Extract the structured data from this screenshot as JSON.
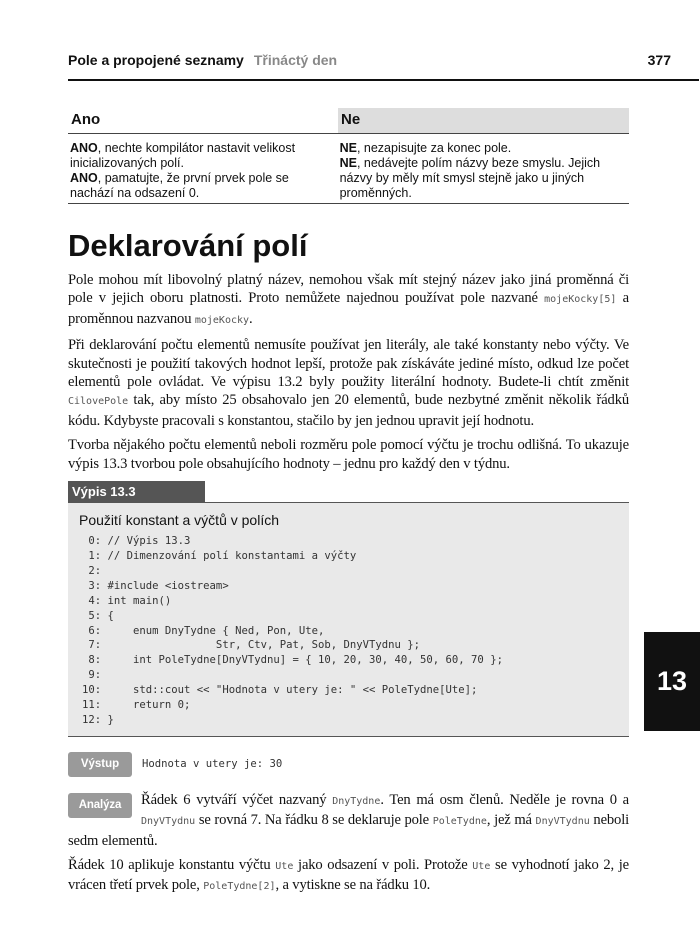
{
  "header": {
    "title": "Pole a propojené seznamy",
    "subtitle": "Třináctý den",
    "page": "377"
  },
  "table": {
    "col_yes": "Ano",
    "col_no": "Ne",
    "yes": [
      {
        "b": "ANO",
        "t": ", nechte kompilátor nastavit velikost inicializovaných polí."
      },
      {
        "b": "ANO",
        "t": ", pamatujte, že první prvek pole se nachází na odsazení 0."
      }
    ],
    "no": [
      {
        "b": "NE",
        "t": ", nezapisujte za konec pole."
      },
      {
        "b": "NE",
        "t": ", nedávejte polím názvy beze smyslu. Jejich názvy by měly mít smysl stejně jako u jiných proměnných."
      }
    ]
  },
  "heading": "Deklarování polí",
  "p1": [
    "Pole mohou mít libovolný platný název, nemohou však mít stejný název jako jiná proměnná či pole v jejich oboru platnosti. Proto nemůžete najednou používat pole nazvané ",
    "mojeKocky[5]",
    " a proměnnou nazvanou ",
    "mojeKocky",
    "."
  ],
  "p2": [
    "Při deklarování počtu elementů nemusíte používat jen literály, ale také konstanty nebo výčty. Ve skutečnosti je použití takových hodnot lepší, protože pak získáváte jediné místo, odkud lze počet elementů pole ovládat. Ve výpisu 13.2 byly použity literální hodnoty. Budete-li chtít změnit ",
    "CilovePole",
    " tak, aby místo 25 obsahovalo jen 20 elementů, bude nezbytné změnit několik řádků kódu. Kdybyste pracovali s konstantou, stačilo by jen jednou upravit její hodnotu."
  ],
  "p3": "Tvorba nějakého počtu elementů neboli rozměru pole pomocí výčtu je trochu odlišná. To ukazuje výpis 13.3 tvorbou pole obsahujícího hodnoty – jednu pro každý den v týdnu.",
  "listing": {
    "label": "Výpis 13.3",
    "title": "Použití konstant a výčtů v polích",
    "code": " 0: // Výpis 13.3\n 1: // Dimenzování polí konstantami a výčty\n 2:\n 3: #include <iostream>\n 4: int main()\n 5: {\n 6:     enum DnyTydne { Ned, Pon, Ute,\n 7:                  Str, Ctv, Pat, Sob, DnyVTydnu };\n 8:     int PoleTydne[DnyVTydnu] = { 10, 20, 30, 40, 50, 60, 70 };\n 9:\n10:     std::cout << \"Hodnota v utery je: \" << PoleTydne[Ute];\n11:     return 0;\n12: }"
  },
  "output": {
    "label": "Výstup",
    "text": "Hodnota v utery je: 30"
  },
  "analysis": {
    "label": "Analýza",
    "p1": [
      "Řádek 6 vytváří výčet nazvaný ",
      "DnyTydne",
      ". Ten má osm členů. Neděle je rovna 0 a ",
      "DnyVTydnu",
      " se rovná 7. Na řádku 8 se deklaruje pole ",
      "PoleTydne",
      ", jež má ",
      "DnyVTydnu",
      " neboli sedm elementů."
    ],
    "p2": [
      "Řádek 10 aplikuje konstantu výčtu ",
      "Ute",
      " jako odsazení v poli. Protože ",
      "Ute",
      " se vyhodnotí jako 2, je vrácen třetí prvek pole, ",
      "PoleTydne[2]",
      ", a vytiskne se na řádku 10."
    ]
  },
  "chapter_tab": "13"
}
